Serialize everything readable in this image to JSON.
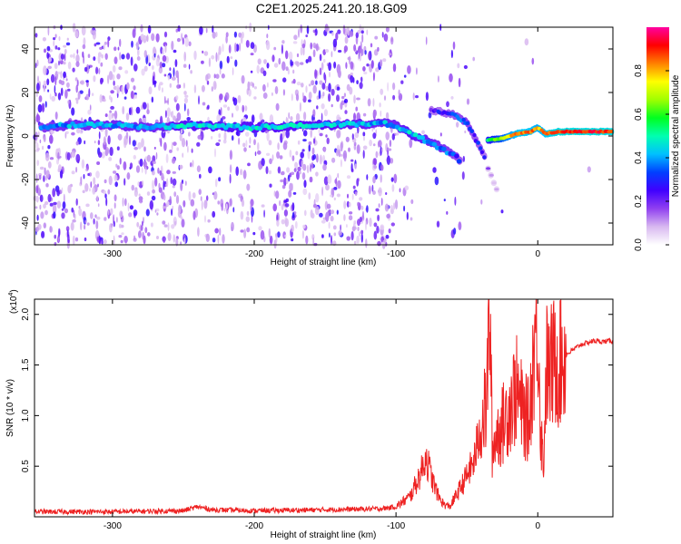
{
  "chart_data": [
    {
      "type": "heatmap",
      "title": "C2E1.2025.241.20.18.G09",
      "xlabel": "Height of straight line (km)",
      "ylabel": "Frequency (Hz)",
      "xlim": [
        -355,
        53
      ],
      "ylim": [
        -50,
        50
      ],
      "x_ticks": [
        -300,
        -200,
        -100,
        0
      ],
      "x_tick_labels": [
        "-300",
        "-200",
        "-100",
        "0"
      ],
      "y_ticks": [
        -40,
        -20,
        0,
        20,
        40
      ],
      "y_tick_labels": [
        "-40",
        "-20",
        "0",
        "20",
        "40"
      ],
      "colorbar": {
        "label": "Normalized spectral amplitude",
        "range": [
          0.0,
          1.0
        ],
        "ticks": [
          0.0,
          0.2,
          0.4,
          0.6,
          0.8
        ],
        "tick_labels": [
          "0.0",
          "0.2",
          "0.4",
          "0.6",
          "0.8"
        ],
        "colors": [
          "#ffffff",
          "#d8b8f0",
          "#9040f0",
          "#4000ff",
          "#0040ff",
          "#00c0ff",
          "#00ffb0",
          "#00ff20",
          "#a0ff00",
          "#ffff00",
          "#ff8000",
          "#ff0000",
          "#ff00a0"
        ]
      },
      "main_trace": [
        {
          "x": -350,
          "y": 4,
          "amp": 0.35
        },
        {
          "x": -330,
          "y": 5,
          "amp": 0.4
        },
        {
          "x": -300,
          "y": 5,
          "amp": 0.4
        },
        {
          "x": -270,
          "y": 4,
          "amp": 0.4
        },
        {
          "x": -250,
          "y": 5,
          "amp": 0.45
        },
        {
          "x": -200,
          "y": 4,
          "amp": 0.45
        },
        {
          "x": -150,
          "y": 5,
          "amp": 0.45
        },
        {
          "x": -110,
          "y": 6,
          "amp": 0.4
        },
        {
          "x": -100,
          "y": 5,
          "amp": 0.4
        },
        {
          "x": -90,
          "y": 1,
          "amp": 0.45
        },
        {
          "x": -75,
          "y": -3,
          "amp": 0.4
        },
        {
          "x": -62,
          "y": -8,
          "amp": 0.35
        },
        {
          "x": -55,
          "y": -11,
          "amp": 0.3
        }
      ],
      "secondary_trace": [
        {
          "x": -75,
          "y": 12,
          "amp": 0.25
        },
        {
          "x": -60,
          "y": 10,
          "amp": 0.3
        },
        {
          "x": -50,
          "y": 6,
          "amp": 0.35
        },
        {
          "x": -45,
          "y": 0,
          "amp": 0.3
        },
        {
          "x": -40,
          "y": -6,
          "amp": 0.3
        },
        {
          "x": -37,
          "y": -10,
          "amp": 0.25
        }
      ],
      "tail_trace": [
        {
          "x": -35,
          "y": -15,
          "amp": 0.12
        },
        {
          "x": -28,
          "y": -26,
          "amp": 0.08
        }
      ],
      "strong_trace": [
        {
          "x": -35,
          "y": -2,
          "amp": 0.55
        },
        {
          "x": -25,
          "y": -1,
          "amp": 0.7
        },
        {
          "x": -15,
          "y": 1,
          "amp": 0.85
        },
        {
          "x": -5,
          "y": 2,
          "amp": 0.85
        },
        {
          "x": 0,
          "y": 4,
          "amp": 0.8
        },
        {
          "x": 5,
          "y": 1,
          "amp": 0.85
        },
        {
          "x": 15,
          "y": 2,
          "amp": 0.9
        },
        {
          "x": 30,
          "y": 2,
          "amp": 0.9
        },
        {
          "x": 53,
          "y": 2,
          "amp": 0.9
        }
      ]
    },
    {
      "type": "line",
      "xlabel": "Height of straight line (km)",
      "ylabel": "SNR (10 * v/v)",
      "y_scale_label": "(x10",
      "y_scale_exponent": "4",
      "xlim": [
        -355,
        53
      ],
      "ylim": [
        0,
        21500
      ],
      "x_ticks": [
        -300,
        -200,
        -100,
        0
      ],
      "x_tick_labels": [
        "-300",
        "-200",
        "-100",
        "0"
      ],
      "y_ticks": [
        5000,
        10000,
        15000,
        20000
      ],
      "y_tick_labels": [
        "0.5",
        "1.0",
        "1.5",
        "2.0"
      ],
      "series": [
        {
          "name": "SNR",
          "color": "#ee2222",
          "x": [
            -355,
            -300,
            -250,
            -240,
            -230,
            -200,
            -150,
            -110,
            -100,
            -90,
            -82,
            -79,
            -77,
            -74,
            -70,
            -66,
            -62,
            -58,
            -52,
            -45,
            -40,
            -36,
            -34,
            -32,
            -30,
            -25,
            -20,
            -15,
            -10,
            -6,
            -4,
            -2,
            0,
            2,
            4,
            6,
            8,
            10,
            15,
            20,
            25,
            30,
            35,
            40,
            45,
            53
          ],
          "y": [
            500,
            500,
            600,
            1000,
            700,
            600,
            700,
            800,
            1000,
            2000,
            4500,
            6000,
            5000,
            3500,
            2000,
            1200,
            1000,
            2000,
            3500,
            5500,
            9000,
            11000,
            21500,
            6000,
            8000,
            9000,
            11000,
            12500,
            10000,
            9500,
            14000,
            18000,
            20500,
            9000,
            5000,
            15000,
            14000,
            15000,
            15500,
            16000,
            16500,
            17000,
            17200,
            17400,
            17300,
            17400
          ]
        }
      ]
    }
  ]
}
